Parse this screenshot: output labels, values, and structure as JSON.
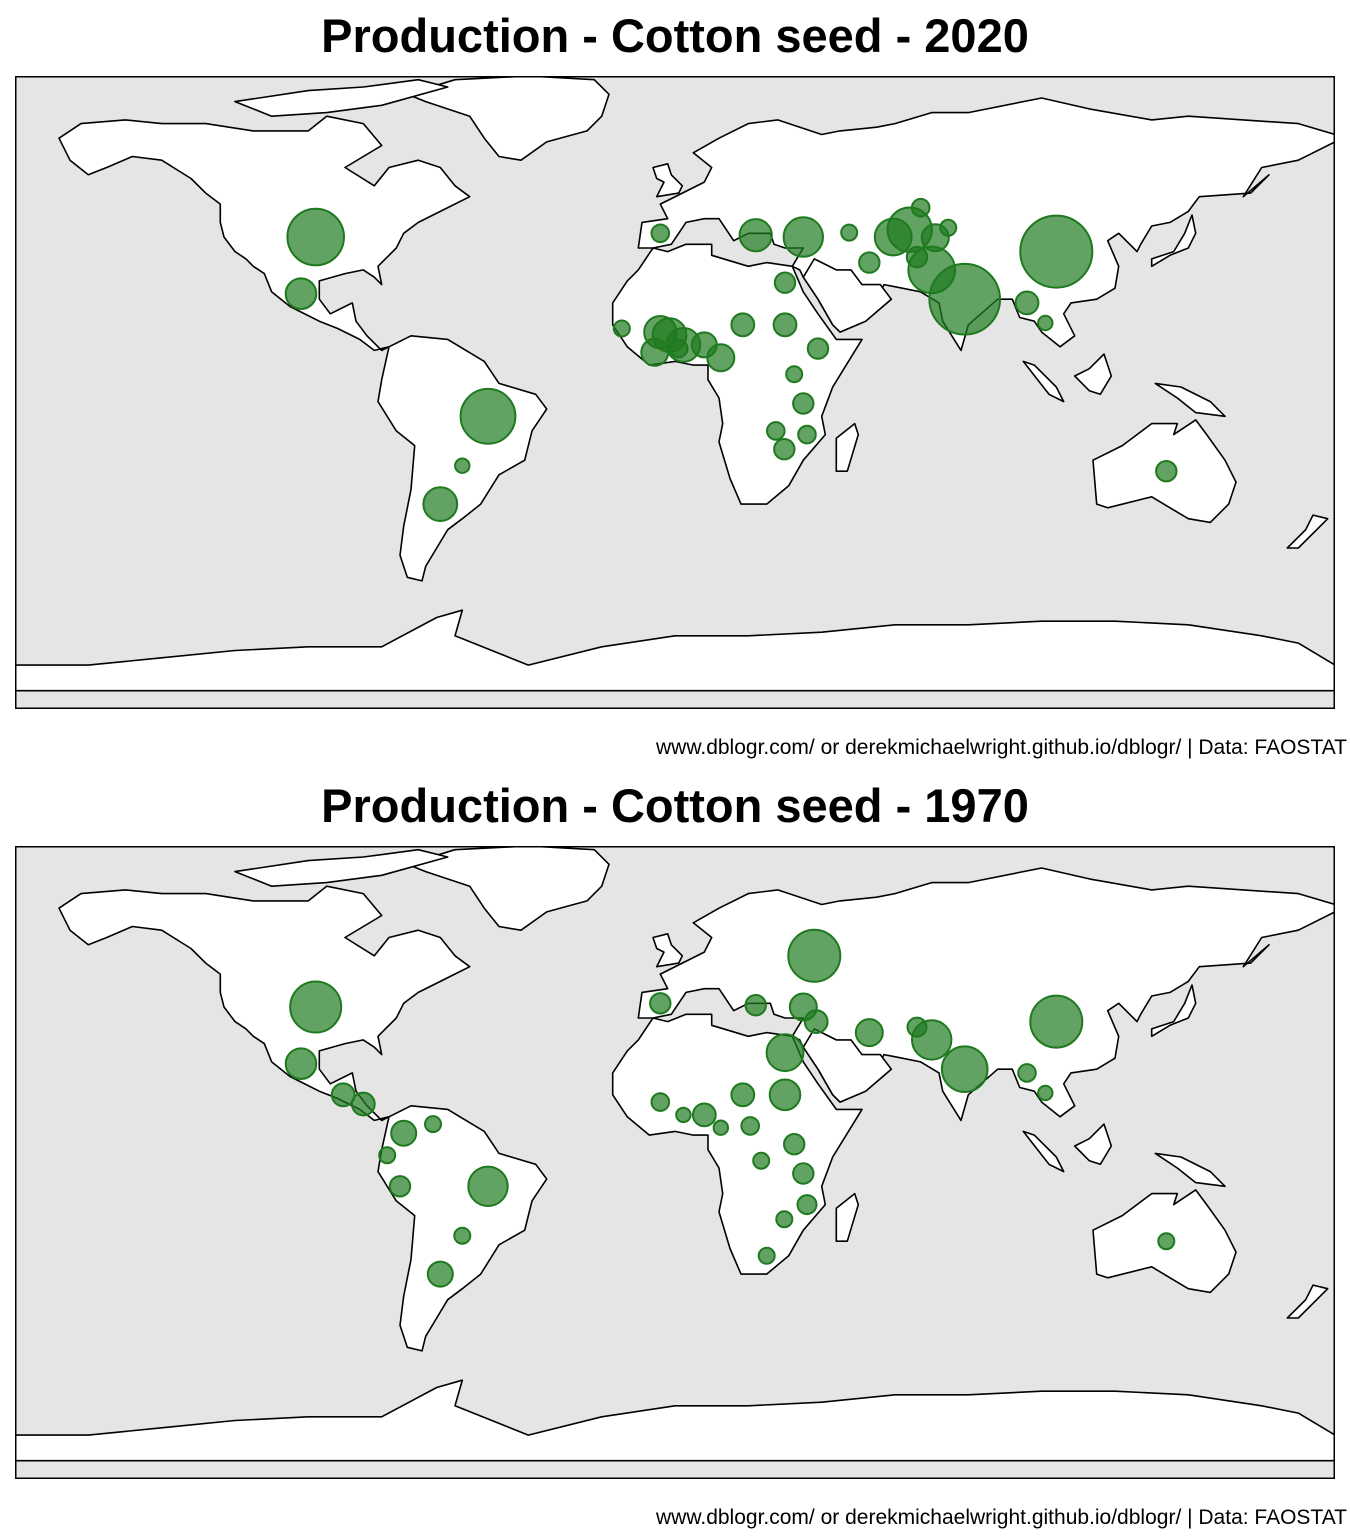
{
  "maps": [
    {
      "title": "Production - Cotton seed - 2020",
      "caption": "www.dblogr.com/ or derekmichaelwright.github.io/dblogr/ | Data: FAOSTAT",
      "marker_color": "#1f7a1f",
      "bubbles": [
        {
          "place": "China",
          "lon": 104.0,
          "lat": 35.0,
          "size": 1.0
        },
        {
          "place": "India",
          "lon": 79.0,
          "lat": 22.0,
          "size": 0.96
        },
        {
          "place": "Pakistan",
          "lon": 70.0,
          "lat": 30.0,
          "size": 0.42
        },
        {
          "place": "Brazil",
          "lon": -51.0,
          "lat": -10.0,
          "size": 0.58
        },
        {
          "place": "USA",
          "lon": -98.0,
          "lat": 39.0,
          "size": 0.62
        },
        {
          "place": "Uzbekistan",
          "lon": 64.0,
          "lat": 41.0,
          "size": 0.38
        },
        {
          "place": "Turkey",
          "lon": 35.0,
          "lat": 39.0,
          "size": 0.3
        },
        {
          "place": "Argentina",
          "lon": -64.0,
          "lat": -34.0,
          "size": 0.22
        },
        {
          "place": "Mexico",
          "lon": -102.0,
          "lat": 23.5,
          "size": 0.18
        },
        {
          "place": "Turkmenistan",
          "lon": 59.5,
          "lat": 39.0,
          "size": 0.26
        },
        {
          "place": "Tajikistan",
          "lon": 71.0,
          "lat": 38.8,
          "size": 0.14
        },
        {
          "place": "Mali",
          "lon": -4.0,
          "lat": 13.0,
          "size": 0.2
        },
        {
          "place": "Burkina Faso",
          "lon": -1.5,
          "lat": 12.2,
          "size": 0.22
        },
        {
          "place": "Benin",
          "lon": 2.3,
          "lat": 9.5,
          "size": 0.22
        },
        {
          "place": "Cote d'Ivoire",
          "lon": -5.5,
          "lat": 7.5,
          "size": 0.14
        },
        {
          "place": "Cameroon",
          "lon": 12.5,
          "lat": 6.0,
          "size": 0.14
        },
        {
          "place": "Nigeria",
          "lon": 8.0,
          "lat": 9.5,
          "size": 0.12
        },
        {
          "place": "Greece",
          "lon": 22.0,
          "lat": 39.5,
          "size": 0.2
        },
        {
          "place": "Egypt",
          "lon": 30.0,
          "lat": 26.5,
          "size": 0.08
        },
        {
          "place": "Chad",
          "lon": 18.5,
          "lat": 15.0,
          "size": 0.1
        },
        {
          "place": "Sudan",
          "lon": 30.0,
          "lat": 15.0,
          "size": 0.1
        },
        {
          "place": "Ethiopia",
          "lon": 39.0,
          "lat": 8.5,
          "size": 0.08
        },
        {
          "place": "Iran",
          "lon": 53.0,
          "lat": 32.0,
          "size": 0.08
        },
        {
          "place": "Afghanistan",
          "lon": 66.0,
          "lat": 33.5,
          "size": 0.08
        },
        {
          "place": "Myanmar",
          "lon": 96.0,
          "lat": 21.0,
          "size": 0.1
        },
        {
          "place": "Australia",
          "lon": 134.0,
          "lat": -25.0,
          "size": 0.08
        },
        {
          "place": "Tanzania",
          "lon": 35.0,
          "lat": -6.5,
          "size": 0.08
        },
        {
          "place": "Zambia",
          "lon": 27.5,
          "lat": -14.0,
          "size": 0.06
        },
        {
          "place": "Zimbabwe",
          "lon": 29.8,
          "lat": -19.0,
          "size": 0.08
        },
        {
          "place": "Mozambique",
          "lon": 36.0,
          "lat": -15.0,
          "size": 0.06
        },
        {
          "place": "Spain",
          "lon": -4.0,
          "lat": 40.0,
          "size": 0.06
        },
        {
          "place": "Kazakhstan",
          "lon": 67.0,
          "lat": 47.0,
          "size": 0.06
        },
        {
          "place": "Kyrgyzstan",
          "lon": 74.5,
          "lat": 41.5,
          "size": 0.05
        },
        {
          "place": "Azerbaijan",
          "lon": 47.5,
          "lat": 40.2,
          "size": 0.05
        },
        {
          "place": "Togo",
          "lon": 1.0,
          "lat": 8.5,
          "size": 0.06
        },
        {
          "place": "Senegal",
          "lon": -14.5,
          "lat": 14.0,
          "size": 0.05
        },
        {
          "place": "Uganda",
          "lon": 32.5,
          "lat": 1.5,
          "size": 0.05
        },
        {
          "place": "Thailand",
          "lon": 101.0,
          "lat": 15.5,
          "size": 0.04
        },
        {
          "place": "Paraguay",
          "lon": -58.0,
          "lat": -23.5,
          "size": 0.04
        }
      ]
    },
    {
      "title": "Production - Cotton seed - 1970",
      "caption": "www.dblogr.com/ or derekmichaelwright.github.io/dblogr/ | Data: FAOSTAT",
      "marker_color": "#1f7a1f",
      "bubbles": [
        {
          "place": "USSR",
          "lon": 38.0,
          "lat": 53.0,
          "size": 0.52
        },
        {
          "place": "USA",
          "lon": -98.0,
          "lat": 39.0,
          "size": 0.5
        },
        {
          "place": "China",
          "lon": 104.0,
          "lat": 35.0,
          "size": 0.52
        },
        {
          "place": "India",
          "lon": 79.0,
          "lat": 22.0,
          "size": 0.4
        },
        {
          "place": "Pakistan",
          "lon": 70.0,
          "lat": 30.0,
          "size": 0.3
        },
        {
          "place": "Brazil",
          "lon": -51.0,
          "lat": -10.0,
          "size": 0.3
        },
        {
          "place": "Egypt",
          "lon": 30.0,
          "lat": 26.5,
          "size": 0.26
        },
        {
          "place": "Sudan",
          "lon": 30.0,
          "lat": 15.0,
          "size": 0.18
        },
        {
          "place": "Mexico",
          "lon": -102.0,
          "lat": 23.5,
          "size": 0.18
        },
        {
          "place": "Turkey",
          "lon": 35.0,
          "lat": 39.0,
          "size": 0.14
        },
        {
          "place": "Iran",
          "lon": 53.0,
          "lat": 32.0,
          "size": 0.14
        },
        {
          "place": "Argentina",
          "lon": -64.0,
          "lat": -34.0,
          "size": 0.12
        },
        {
          "place": "Colombia",
          "lon": -74.0,
          "lat": 4.5,
          "size": 0.12
        },
        {
          "place": "Nicaragua",
          "lon": -85.0,
          "lat": 12.5,
          "size": 0.1
        },
        {
          "place": "Guatemala",
          "lon": -90.5,
          "lat": 15.0,
          "size": 0.1
        },
        {
          "place": "Syria",
          "lon": 38.5,
          "lat": 35.0,
          "size": 0.1
        },
        {
          "place": "Spain",
          "lon": -4.0,
          "lat": 40.0,
          "size": 0.08
        },
        {
          "place": "Greece",
          "lon": 22.0,
          "lat": 39.5,
          "size": 0.08
        },
        {
          "place": "Peru",
          "lon": -75.0,
          "lat": -10.0,
          "size": 0.08
        },
        {
          "place": "Nigeria",
          "lon": 8.0,
          "lat": 9.5,
          "size": 0.1
        },
        {
          "place": "Chad",
          "lon": 18.5,
          "lat": 15.0,
          "size": 0.1
        },
        {
          "place": "Uganda",
          "lon": 32.5,
          "lat": 1.5,
          "size": 0.08
        },
        {
          "place": "Tanzania",
          "lon": 35.0,
          "lat": -6.5,
          "size": 0.08
        },
        {
          "place": "Mozambique",
          "lon": 36.0,
          "lat": -15.0,
          "size": 0.07
        },
        {
          "place": "Afghanistan",
          "lon": 66.0,
          "lat": 33.5,
          "size": 0.07
        },
        {
          "place": "Burma",
          "lon": 96.0,
          "lat": 21.0,
          "size": 0.06
        },
        {
          "place": "Mali",
          "lon": -4.0,
          "lat": 13.0,
          "size": 0.06
        },
        {
          "place": "CAR",
          "lon": 20.5,
          "lat": 6.5,
          "size": 0.06
        },
        {
          "place": "Zaire",
          "lon": 23.5,
          "lat": -3.0,
          "size": 0.05
        },
        {
          "place": "Australia",
          "lon": 134.0,
          "lat": -25.0,
          "size": 0.05
        },
        {
          "place": "Paraguay",
          "lon": -58.0,
          "lat": -23.5,
          "size": 0.05
        },
        {
          "place": "Ecuador",
          "lon": -78.5,
          "lat": -1.5,
          "size": 0.05
        },
        {
          "place": "Venezuela",
          "lon": -66.0,
          "lat": 7.0,
          "size": 0.05
        },
        {
          "place": "South Africa",
          "lon": 25.0,
          "lat": -29.0,
          "size": 0.05
        },
        {
          "place": "Rhodesia",
          "lon": 29.8,
          "lat": -19.0,
          "size": 0.05
        },
        {
          "place": "Thailand",
          "lon": 101.0,
          "lat": 15.5,
          "size": 0.04
        },
        {
          "place": "Benin",
          "lon": 2.3,
          "lat": 9.5,
          "size": 0.04
        },
        {
          "place": "Cameroon",
          "lon": 12.5,
          "lat": 6.0,
          "size": 0.04
        }
      ]
    }
  ]
}
